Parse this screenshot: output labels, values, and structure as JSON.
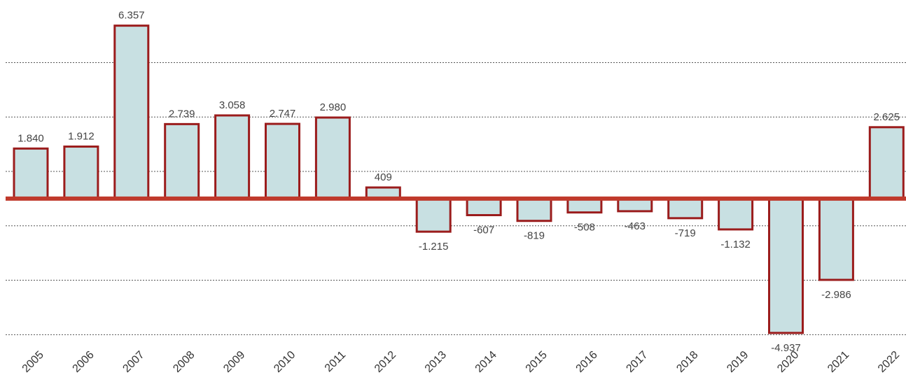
{
  "chart_data": {
    "type": "bar",
    "categories": [
      "2005",
      "2006",
      "2007",
      "2008",
      "2009",
      "2010",
      "2011",
      "2012",
      "2013",
      "2014",
      "2015",
      "2016",
      "2017",
      "2018",
      "2019",
      "2020",
      "2021",
      "2022"
    ],
    "values": [
      1840,
      1912,
      6357,
      2739,
      3058,
      2747,
      2980,
      409,
      -1215,
      -607,
      -819,
      -508,
      -463,
      -719,
      -1132,
      -4937,
      -2986,
      2625
    ],
    "value_labels": [
      "1.840",
      "1.912",
      "6.357",
      "2.739",
      "3.058",
      "2.747",
      "2.980",
      "409",
      "-1.215",
      "-607",
      "-819",
      "-508",
      "-463",
      "-719",
      "-1.132",
      "-4.937",
      "-2.986",
      "2.625"
    ],
    "color": "#c8e0e2",
    "edge_color": "#9b1c1c",
    "ylim": [
      -5300,
      7300
    ],
    "yticks": [
      -5000,
      -3000,
      -1000,
      1000,
      3000,
      5000
    ],
    "grid": true
  }
}
